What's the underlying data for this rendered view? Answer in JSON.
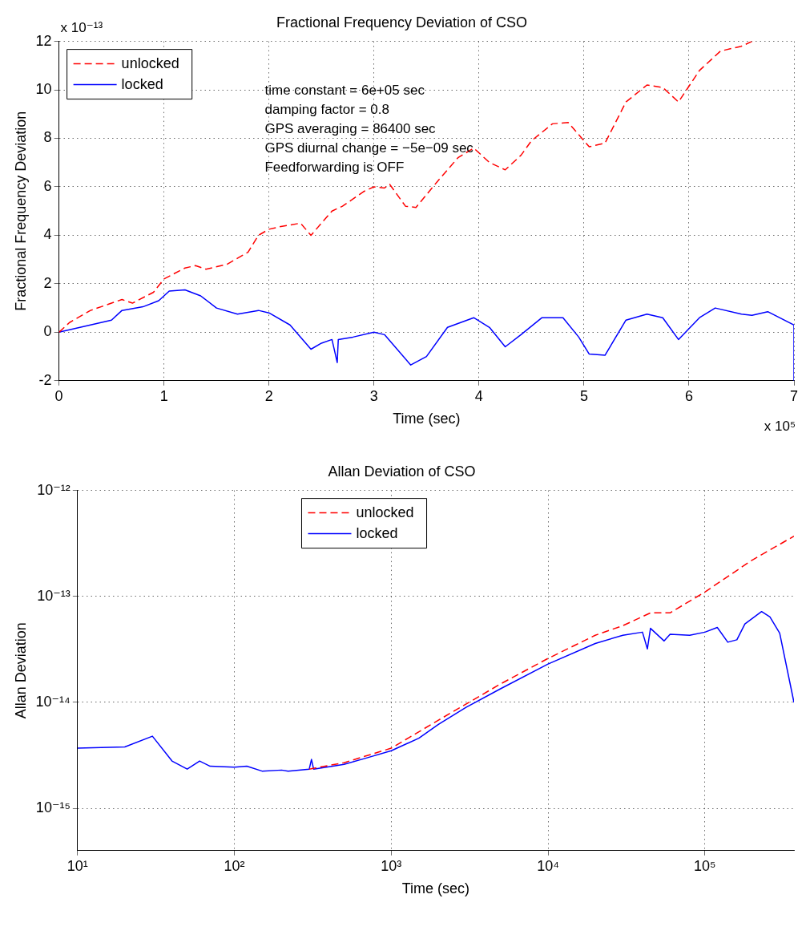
{
  "chart_data": [
    {
      "type": "line",
      "title": "Fractional Frequency Deviation of CSO",
      "xlabel": "Time (sec)",
      "ylabel": "Fractional Frequency Deviation",
      "annotations": [
        "x 10⁻¹³",
        "x 10⁵",
        "time constant = 6e+05 sec",
        "damping factor = 0.8",
        "GPS averaging = 86400 sec",
        "GPS diurnal change = −5e−09 sec",
        "Feedforwarding is OFF"
      ],
      "xlim": [
        0,
        7
      ],
      "xticks": [
        0,
        1,
        2,
        3,
        4,
        5,
        6,
        7
      ],
      "ylim": [
        -2,
        12
      ],
      "yticks": [
        -2,
        0,
        2,
        4,
        6,
        8,
        10,
        12
      ],
      "grid": true,
      "legend": "top left",
      "marker": "none",
      "series": [
        {
          "name": "unlocked",
          "color": "#ff0000",
          "line_style": "dashed",
          "x": [
            0,
            0.1,
            0.3,
            0.5,
            0.6,
            0.7,
            0.9,
            1.0,
            1.2,
            1.3,
            1.4,
            1.6,
            1.8,
            1.9,
            2.0,
            2.1,
            2.3,
            2.4,
            2.5,
            2.6,
            2.7,
            2.9,
            3.0,
            3.1,
            3.15,
            3.3,
            3.4,
            3.6,
            3.8,
            3.95,
            4.1,
            4.25,
            4.4,
            4.5,
            4.7,
            4.85,
            5.0,
            5.05,
            5.2,
            5.4,
            5.6,
            5.75,
            5.9,
            6.1,
            6.3,
            6.5,
            6.6
          ],
          "values": [
            0,
            0.4,
            0.9,
            1.2,
            1.35,
            1.2,
            1.65,
            2.2,
            2.65,
            2.75,
            2.6,
            2.8,
            3.3,
            4.0,
            4.25,
            4.35,
            4.5,
            4.0,
            4.5,
            5.0,
            5.2,
            5.8,
            6.0,
            5.95,
            6.1,
            5.2,
            5.15,
            6.2,
            7.2,
            7.6,
            7.0,
            6.7,
            7.3,
            7.9,
            8.6,
            8.65,
            7.9,
            7.65,
            7.8,
            9.5,
            10.2,
            10.1,
            9.5,
            10.8,
            11.6,
            11.8,
            12
          ]
        },
        {
          "name": "locked",
          "color": "#0000ff",
          "line_style": "solid",
          "x": [
            0,
            0.3,
            0.5,
            0.6,
            0.8,
            0.95,
            1.05,
            1.2,
            1.35,
            1.5,
            1.7,
            1.9,
            2.0,
            2.2,
            2.4,
            2.5,
            2.6,
            2.65,
            2.66,
            2.8,
            3.0,
            3.1,
            3.35,
            3.5,
            3.7,
            3.95,
            4.1,
            4.25,
            4.4,
            4.6,
            4.8,
            4.95,
            5.05,
            5.2,
            5.4,
            5.6,
            5.75,
            5.9,
            6.1,
            6.25,
            6.5,
            6.6,
            6.75,
            7.0,
            7.0
          ],
          "values": [
            0,
            0.3,
            0.5,
            0.9,
            1.05,
            1.3,
            1.7,
            1.75,
            1.5,
            1.0,
            0.75,
            0.9,
            0.8,
            0.3,
            -0.7,
            -0.45,
            -0.3,
            -1.25,
            -0.3,
            -0.2,
            0.0,
            -0.1,
            -1.35,
            -1.0,
            0.2,
            0.6,
            0.2,
            -0.6,
            -0.1,
            0.6,
            0.6,
            -0.2,
            -0.9,
            -0.95,
            0.5,
            0.75,
            0.6,
            -0.3,
            0.6,
            1.0,
            0.75,
            0.7,
            0.85,
            0.3,
            -2
          ]
        }
      ]
    },
    {
      "type": "line",
      "title": "Allan Deviation of CSO",
      "xlabel": "Time (sec)",
      "ylabel": "Allan Deviation",
      "log": "xy",
      "xlim": [
        10,
        370000
      ],
      "xticks": [
        {
          "value": 10,
          "label": "10¹"
        },
        {
          "value": 100,
          "label": "10²"
        },
        {
          "value": 1000,
          "label": "10³"
        },
        {
          "value": 10000,
          "label": "10⁴"
        },
        {
          "value": 100000,
          "label": "10⁵"
        }
      ],
      "ylim": [
        4e-16,
        1e-12
      ],
      "yticks": [
        {
          "value": 1e-15,
          "label": "10⁻¹⁵"
        },
        {
          "value": 1e-14,
          "label": "10⁻¹⁴"
        },
        {
          "value": 1e-13,
          "label": "10⁻¹³"
        },
        {
          "value": 1e-12,
          "label": "10⁻¹²"
        }
      ],
      "grid": true,
      "legend": "top",
      "marker": "none",
      "series": [
        {
          "name": "unlocked",
          "color": "#ff0000",
          "line_style": "dashed",
          "x": [
            300,
            500,
            1000,
            2000,
            5000,
            10000,
            20000,
            30000,
            45000,
            60000,
            100000,
            200000,
            370000
          ],
          "values": [
            2.35e-15,
            2.7e-15,
            3.7e-15,
            6.8e-15,
            1.5e-14,
            2.6e-14,
            4.3e-14,
            5.3e-14,
            7e-14,
            7e-14,
            1.1e-13,
            2.2e-13,
            3.7e-13
          ]
        },
        {
          "name": "locked",
          "color": "#0000ff",
          "line_style": "solid",
          "x": [
            10,
            20,
            30,
            40,
            50,
            60,
            70,
            100,
            120,
            150,
            200,
            220,
            300,
            310,
            320,
            500,
            700,
            1000,
            1500,
            2000,
            3000,
            5000,
            10000,
            20000,
            30000,
            40000,
            43000,
            45000,
            55000,
            60000,
            80000,
            100000,
            120000,
            140000,
            160000,
            180000,
            230000,
            260000,
            300000,
            370000
          ],
          "values": [
            3.7e-15,
            3.8e-15,
            4.8e-15,
            2.8e-15,
            2.35e-15,
            2.8e-15,
            2.5e-15,
            2.45e-15,
            2.5e-15,
            2.25e-15,
            2.3e-15,
            2.25e-15,
            2.35e-15,
            2.9e-15,
            2.35e-15,
            2.6e-15,
            3e-15,
            3.5e-15,
            4.6e-15,
            6.2e-15,
            9e-15,
            1.35e-14,
            2.3e-14,
            3.6e-14,
            4.3e-14,
            4.6e-14,
            3.2e-14,
            5e-14,
            3.8e-14,
            4.4e-14,
            4.3e-14,
            4.6e-14,
            5.1e-14,
            3.7e-14,
            3.9e-14,
            5.5e-14,
            7.2e-14,
            6.4e-14,
            4.5e-14,
            1e-14
          ]
        }
      ]
    }
  ]
}
